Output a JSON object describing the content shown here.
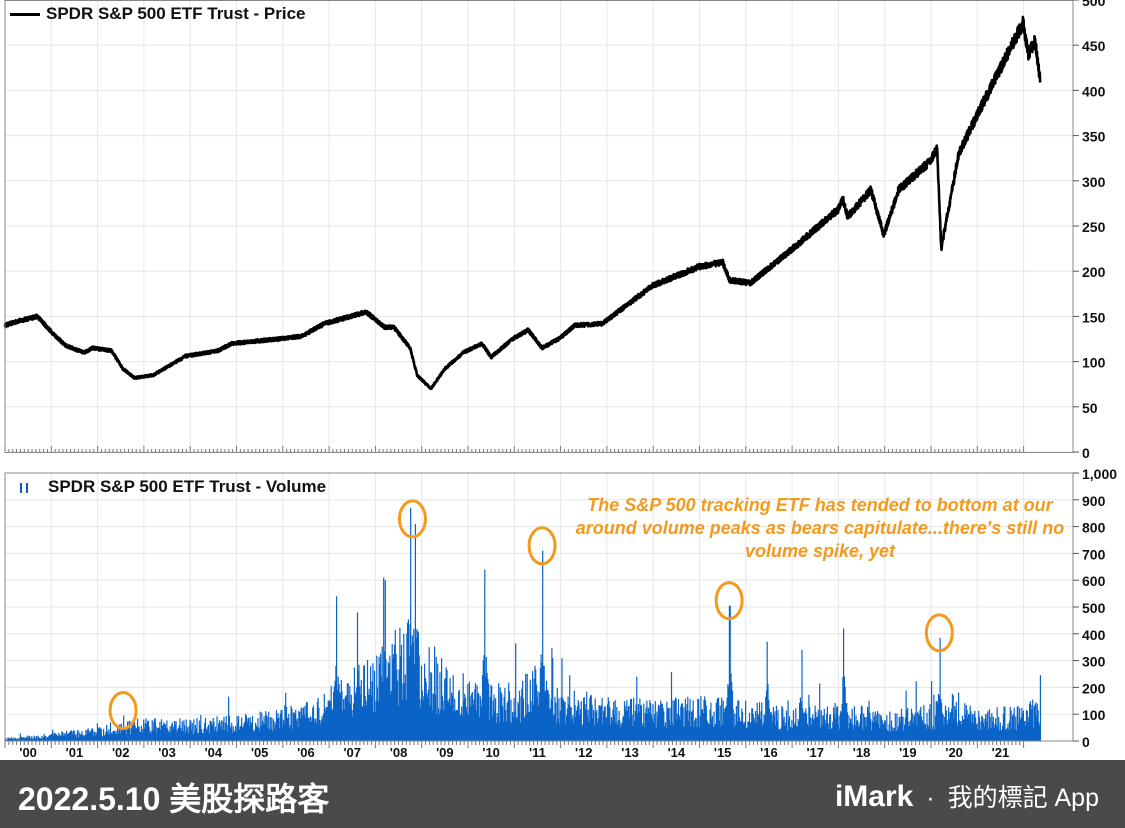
{
  "chart_data": [
    {
      "type": "line",
      "title": "SPDR S&P 500 ETF Trust - Price",
      "ylim": [
        0,
        500
      ],
      "yticks": [
        "0",
        "50",
        "100",
        "150",
        "200",
        "250",
        "300",
        "350",
        "400",
        "450",
        "500"
      ],
      "xlim": [
        2000,
        2022.5
      ],
      "color": "#000000",
      "x": [
        2000.0,
        2000.3,
        2000.7,
        2001.0,
        2001.3,
        2001.7,
        2001.9,
        2002.3,
        2002.55,
        2002.8,
        2003.2,
        2003.9,
        2004.6,
        2004.9,
        2005.9,
        2006.4,
        2006.9,
        2007.6,
        2007.8,
        2008.2,
        2008.4,
        2008.75,
        2008.9,
        2009.2,
        2009.5,
        2009.9,
        2010.3,
        2010.5,
        2010.99,
        2011.3,
        2011.6,
        2011.99,
        2012.3,
        2012.9,
        2013.99,
        2014.99,
        2015.5,
        2015.65,
        2016.1,
        2016.99,
        2017.99,
        2018.1,
        2018.2,
        2018.7,
        2018.98,
        2019.3,
        2019.99,
        2020.13,
        2020.22,
        2020.6,
        2020.99,
        2021.99,
        2022.1,
        2022.25,
        2022.36
      ],
      "y": [
        140,
        145,
        150,
        133,
        118,
        110,
        115,
        112,
        92,
        82,
        85,
        106,
        112,
        120,
        125,
        128,
        142,
        152,
        155,
        138,
        138,
        115,
        85,
        70,
        92,
        110,
        120,
        105,
        126,
        135,
        115,
        126,
        140,
        142,
        184,
        205,
        210,
        190,
        187,
        224,
        268,
        280,
        260,
        290,
        240,
        290,
        322,
        337,
        225,
        330,
        372,
        475,
        440,
        455,
        410
      ]
    },
    {
      "type": "bar",
      "title": "SPDR S&P 500 ETF Trust - Volume",
      "ylim": [
        0,
        1000
      ],
      "yticks": [
        "0",
        "100",
        "200",
        "300",
        "400",
        "500",
        "600",
        "700",
        "800",
        "900",
        "1,000"
      ],
      "color": "#0a64c8",
      "baseline_x": [
        2000.0,
        2001.0,
        2002.0,
        2003.0,
        2004.0,
        2005.0,
        2006.0,
        2006.8,
        2007.5,
        2008.0,
        2008.7,
        2009.0,
        2009.5,
        2010.0,
        2011.0,
        2011.5,
        2012.0,
        2013.0,
        2014.0,
        2015.0,
        2016.0,
        2017.0,
        2018.0,
        2019.0,
        2020.0,
        2020.5,
        2021.0,
        2022.0,
        2022.36
      ],
      "baseline_y": [
        8,
        20,
        35,
        55,
        55,
        65,
        80,
        110,
        180,
        230,
        300,
        260,
        200,
        160,
        140,
        190,
        130,
        110,
        100,
        110,
        100,
        80,
        95,
        75,
        90,
        130,
        75,
        90,
        110
      ],
      "spikes_x": [
        2002.55,
        2006.05,
        2007.15,
        2007.6,
        2008.2,
        2008.75,
        2008.85,
        2010.35,
        2011.6,
        2015.64,
        2016.45,
        2017.2,
        2018.1,
        2020.18
      ],
      "spikes_y": [
        95,
        180,
        540,
        480,
        600,
        870,
        810,
        640,
        710,
        505,
        370,
        340,
        420,
        385
      ],
      "highlighted_peaks_x": [
        2002.55,
        2008.8,
        2011.6,
        2015.64,
        2020.18
      ],
      "x_tick_labels": [
        "'00",
        "'01",
        "'02",
        "'03",
        "'04",
        "'05",
        "'06",
        "'07",
        "'08",
        "'09",
        "'10",
        "'11",
        "'12",
        "'13",
        "'14",
        "'15",
        "'16",
        "'17",
        "'18",
        "'19",
        "'20",
        "'21"
      ],
      "annotation": "The S&P 500 tracking ETF has tended to bottom at our around volume peaks as bears capitulate...there's still no volume spike, yet",
      "annotation_color": "#f39a1e"
    }
  ],
  "footer": {
    "date_title": "2022.5.10 美股探路客",
    "brand": "iMark",
    "separator": "·",
    "tagline": "我的標記 App"
  }
}
